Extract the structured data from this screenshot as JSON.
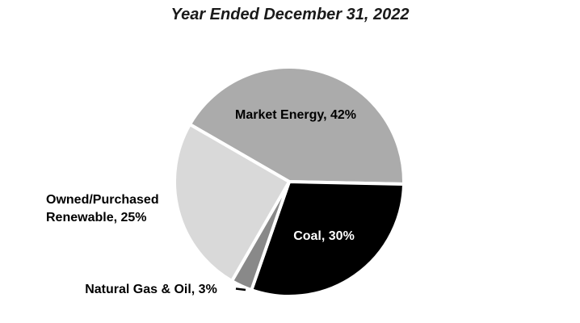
{
  "chart_data": {
    "type": "pie",
    "title": "Year Ended December 31, 2022",
    "start_angle_deg": 300,
    "direction": "clockwise",
    "legend_position": "none",
    "background_color": "#ffffff",
    "gap_color": "#ffffff",
    "slices": [
      {
        "name": "Market Energy",
        "value_pct": 42,
        "color": "#ABABAB",
        "label": "Market Energy, 42%",
        "label_color": "#000000"
      },
      {
        "name": "Coal",
        "value_pct": 30,
        "color": "#000000",
        "label": "Coal, 30%",
        "label_color": "#FFFFFF"
      },
      {
        "name": "Natural Gas & Oil",
        "value_pct": 3,
        "color": "#898989",
        "label": "Natural Gas & Oil, 3%",
        "label_color": "#000000",
        "has_leader_line": true
      },
      {
        "name": "Owned/Purchased Renewable",
        "value_pct": 25,
        "color": "#D9D9D9",
        "label": "Owned/Purchased Renewable, 25%",
        "label_lines": [
          "Owned/Purchased",
          "Renewable, 25%"
        ],
        "label_color": "#000000"
      }
    ]
  }
}
